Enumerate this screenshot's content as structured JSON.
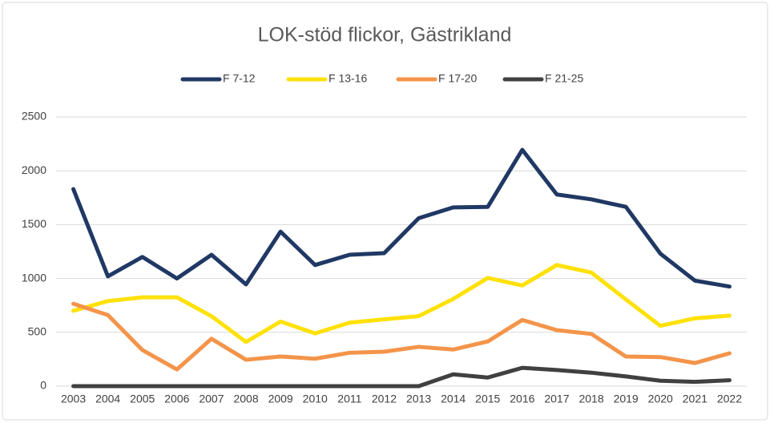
{
  "chart_data": {
    "type": "line",
    "title": "LOK-stöd flickor, Gästrikland",
    "categories": [
      "2003",
      "2004",
      "2005",
      "2006",
      "2007",
      "2008",
      "2009",
      "2010",
      "2011",
      "2012",
      "2013",
      "2014",
      "2015",
      "2016",
      "2017",
      "2018",
      "2019",
      "2020",
      "2021",
      "2022"
    ],
    "series": [
      {
        "name": "F 7-12",
        "color": "#203864",
        "values": [
          1830,
          1020,
          1200,
          1000,
          1220,
          945,
          1435,
          1125,
          1220,
          1235,
          1560,
          1660,
          1665,
          2195,
          1780,
          1735,
          1665,
          1230,
          980,
          925
        ]
      },
      {
        "name": "F 13-16",
        "color": "#ffe10a",
        "values": [
          700,
          790,
          825,
          825,
          650,
          410,
          600,
          490,
          590,
          620,
          650,
          810,
          1005,
          935,
          1125,
          1055,
          805,
          560,
          630,
          655
        ]
      },
      {
        "name": "F 17-20",
        "color": "#f4944a",
        "values": [
          765,
          660,
          335,
          155,
          440,
          245,
          275,
          255,
          310,
          320,
          365,
          340,
          415,
          615,
          520,
          485,
          275,
          270,
          215,
          305
        ]
      },
      {
        "name": "F 21-25",
        "color": "#404040",
        "values": [
          0,
          0,
          0,
          0,
          0,
          0,
          0,
          0,
          0,
          0,
          0,
          110,
          80,
          170,
          150,
          125,
          90,
          50,
          40,
          55
        ]
      }
    ],
    "ylim": [
      0,
      2500
    ],
    "yticks": [
      0,
      500,
      1000,
      1500,
      2000,
      2500
    ],
    "grid": true,
    "legend": "top"
  }
}
